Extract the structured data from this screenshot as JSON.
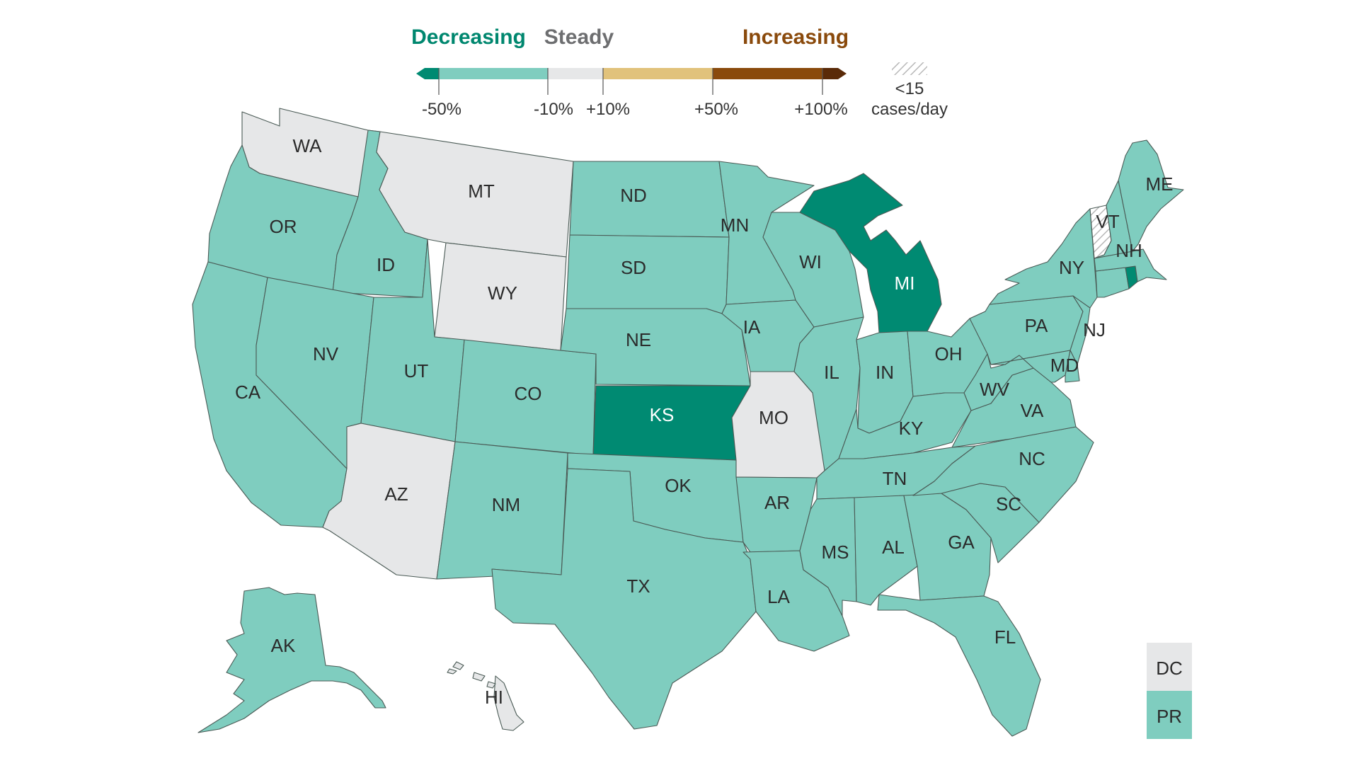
{
  "legend": {
    "decreasing_label": "Decreasing",
    "steady_label": "Steady",
    "increasing_label": "Increasing",
    "ticks": [
      "-50%",
      "-10%",
      "+10%",
      "+50%",
      "+100%"
    ],
    "hatch_label_line1": "<15",
    "hatch_label_line2": "cases/day",
    "colors": {
      "strong_decrease": "#008a72",
      "decrease": "#7fcdbf",
      "steady": "#e6e7e8",
      "increase": "#e1c27b",
      "strong_increase": "#8a4a0c",
      "very_strong_increase": "#5a2a08",
      "decreasing_text": "#00876f",
      "steady_text": "#6d6e70",
      "increasing_text": "#8a4a0c"
    }
  },
  "states": [
    {
      "abbr": "WA",
      "category": "steady"
    },
    {
      "abbr": "OR",
      "category": "decrease"
    },
    {
      "abbr": "CA",
      "category": "decrease"
    },
    {
      "abbr": "ID",
      "category": "decrease"
    },
    {
      "abbr": "NV",
      "category": "decrease"
    },
    {
      "abbr": "MT",
      "category": "steady"
    },
    {
      "abbr": "WY",
      "category": "steady"
    },
    {
      "abbr": "UT",
      "category": "decrease"
    },
    {
      "abbr": "AZ",
      "category": "steady"
    },
    {
      "abbr": "CO",
      "category": "decrease"
    },
    {
      "abbr": "NM",
      "category": "decrease"
    },
    {
      "abbr": "ND",
      "category": "decrease"
    },
    {
      "abbr": "SD",
      "category": "decrease"
    },
    {
      "abbr": "NE",
      "category": "decrease"
    },
    {
      "abbr": "KS",
      "category": "strong_decrease"
    },
    {
      "abbr": "OK",
      "category": "decrease"
    },
    {
      "abbr": "TX",
      "category": "decrease"
    },
    {
      "abbr": "MN",
      "category": "decrease"
    },
    {
      "abbr": "IA",
      "category": "decrease"
    },
    {
      "abbr": "MO",
      "category": "steady"
    },
    {
      "abbr": "AR",
      "category": "decrease"
    },
    {
      "abbr": "LA",
      "category": "decrease"
    },
    {
      "abbr": "WI",
      "category": "decrease"
    },
    {
      "abbr": "IL",
      "category": "decrease"
    },
    {
      "abbr": "MI",
      "category": "strong_decrease"
    },
    {
      "abbr": "IN",
      "category": "decrease"
    },
    {
      "abbr": "OH",
      "category": "decrease"
    },
    {
      "abbr": "KY",
      "category": "decrease"
    },
    {
      "abbr": "TN",
      "category": "decrease"
    },
    {
      "abbr": "MS",
      "category": "decrease"
    },
    {
      "abbr": "AL",
      "category": "decrease"
    },
    {
      "abbr": "GA",
      "category": "decrease"
    },
    {
      "abbr": "FL",
      "category": "decrease"
    },
    {
      "abbr": "SC",
      "category": "decrease"
    },
    {
      "abbr": "NC",
      "category": "decrease"
    },
    {
      "abbr": "VA",
      "category": "decrease"
    },
    {
      "abbr": "WV",
      "category": "decrease"
    },
    {
      "abbr": "PA",
      "category": "decrease"
    },
    {
      "abbr": "NY",
      "category": "decrease"
    },
    {
      "abbr": "NJ",
      "category": "decrease"
    },
    {
      "abbr": "MD",
      "category": "decrease"
    },
    {
      "abbr": "DE",
      "category": "decrease"
    },
    {
      "abbr": "CT",
      "category": "decrease"
    },
    {
      "abbr": "RI",
      "category": "strong_decrease"
    },
    {
      "abbr": "MA",
      "category": "decrease"
    },
    {
      "abbr": "VT",
      "category": "low_cases"
    },
    {
      "abbr": "NH",
      "category": "decrease"
    },
    {
      "abbr": "ME",
      "category": "decrease"
    },
    {
      "abbr": "AK",
      "category": "decrease"
    },
    {
      "abbr": "HI",
      "category": "steady"
    },
    {
      "abbr": "DC",
      "category": "steady"
    },
    {
      "abbr": "PR",
      "category": "decrease"
    }
  ]
}
